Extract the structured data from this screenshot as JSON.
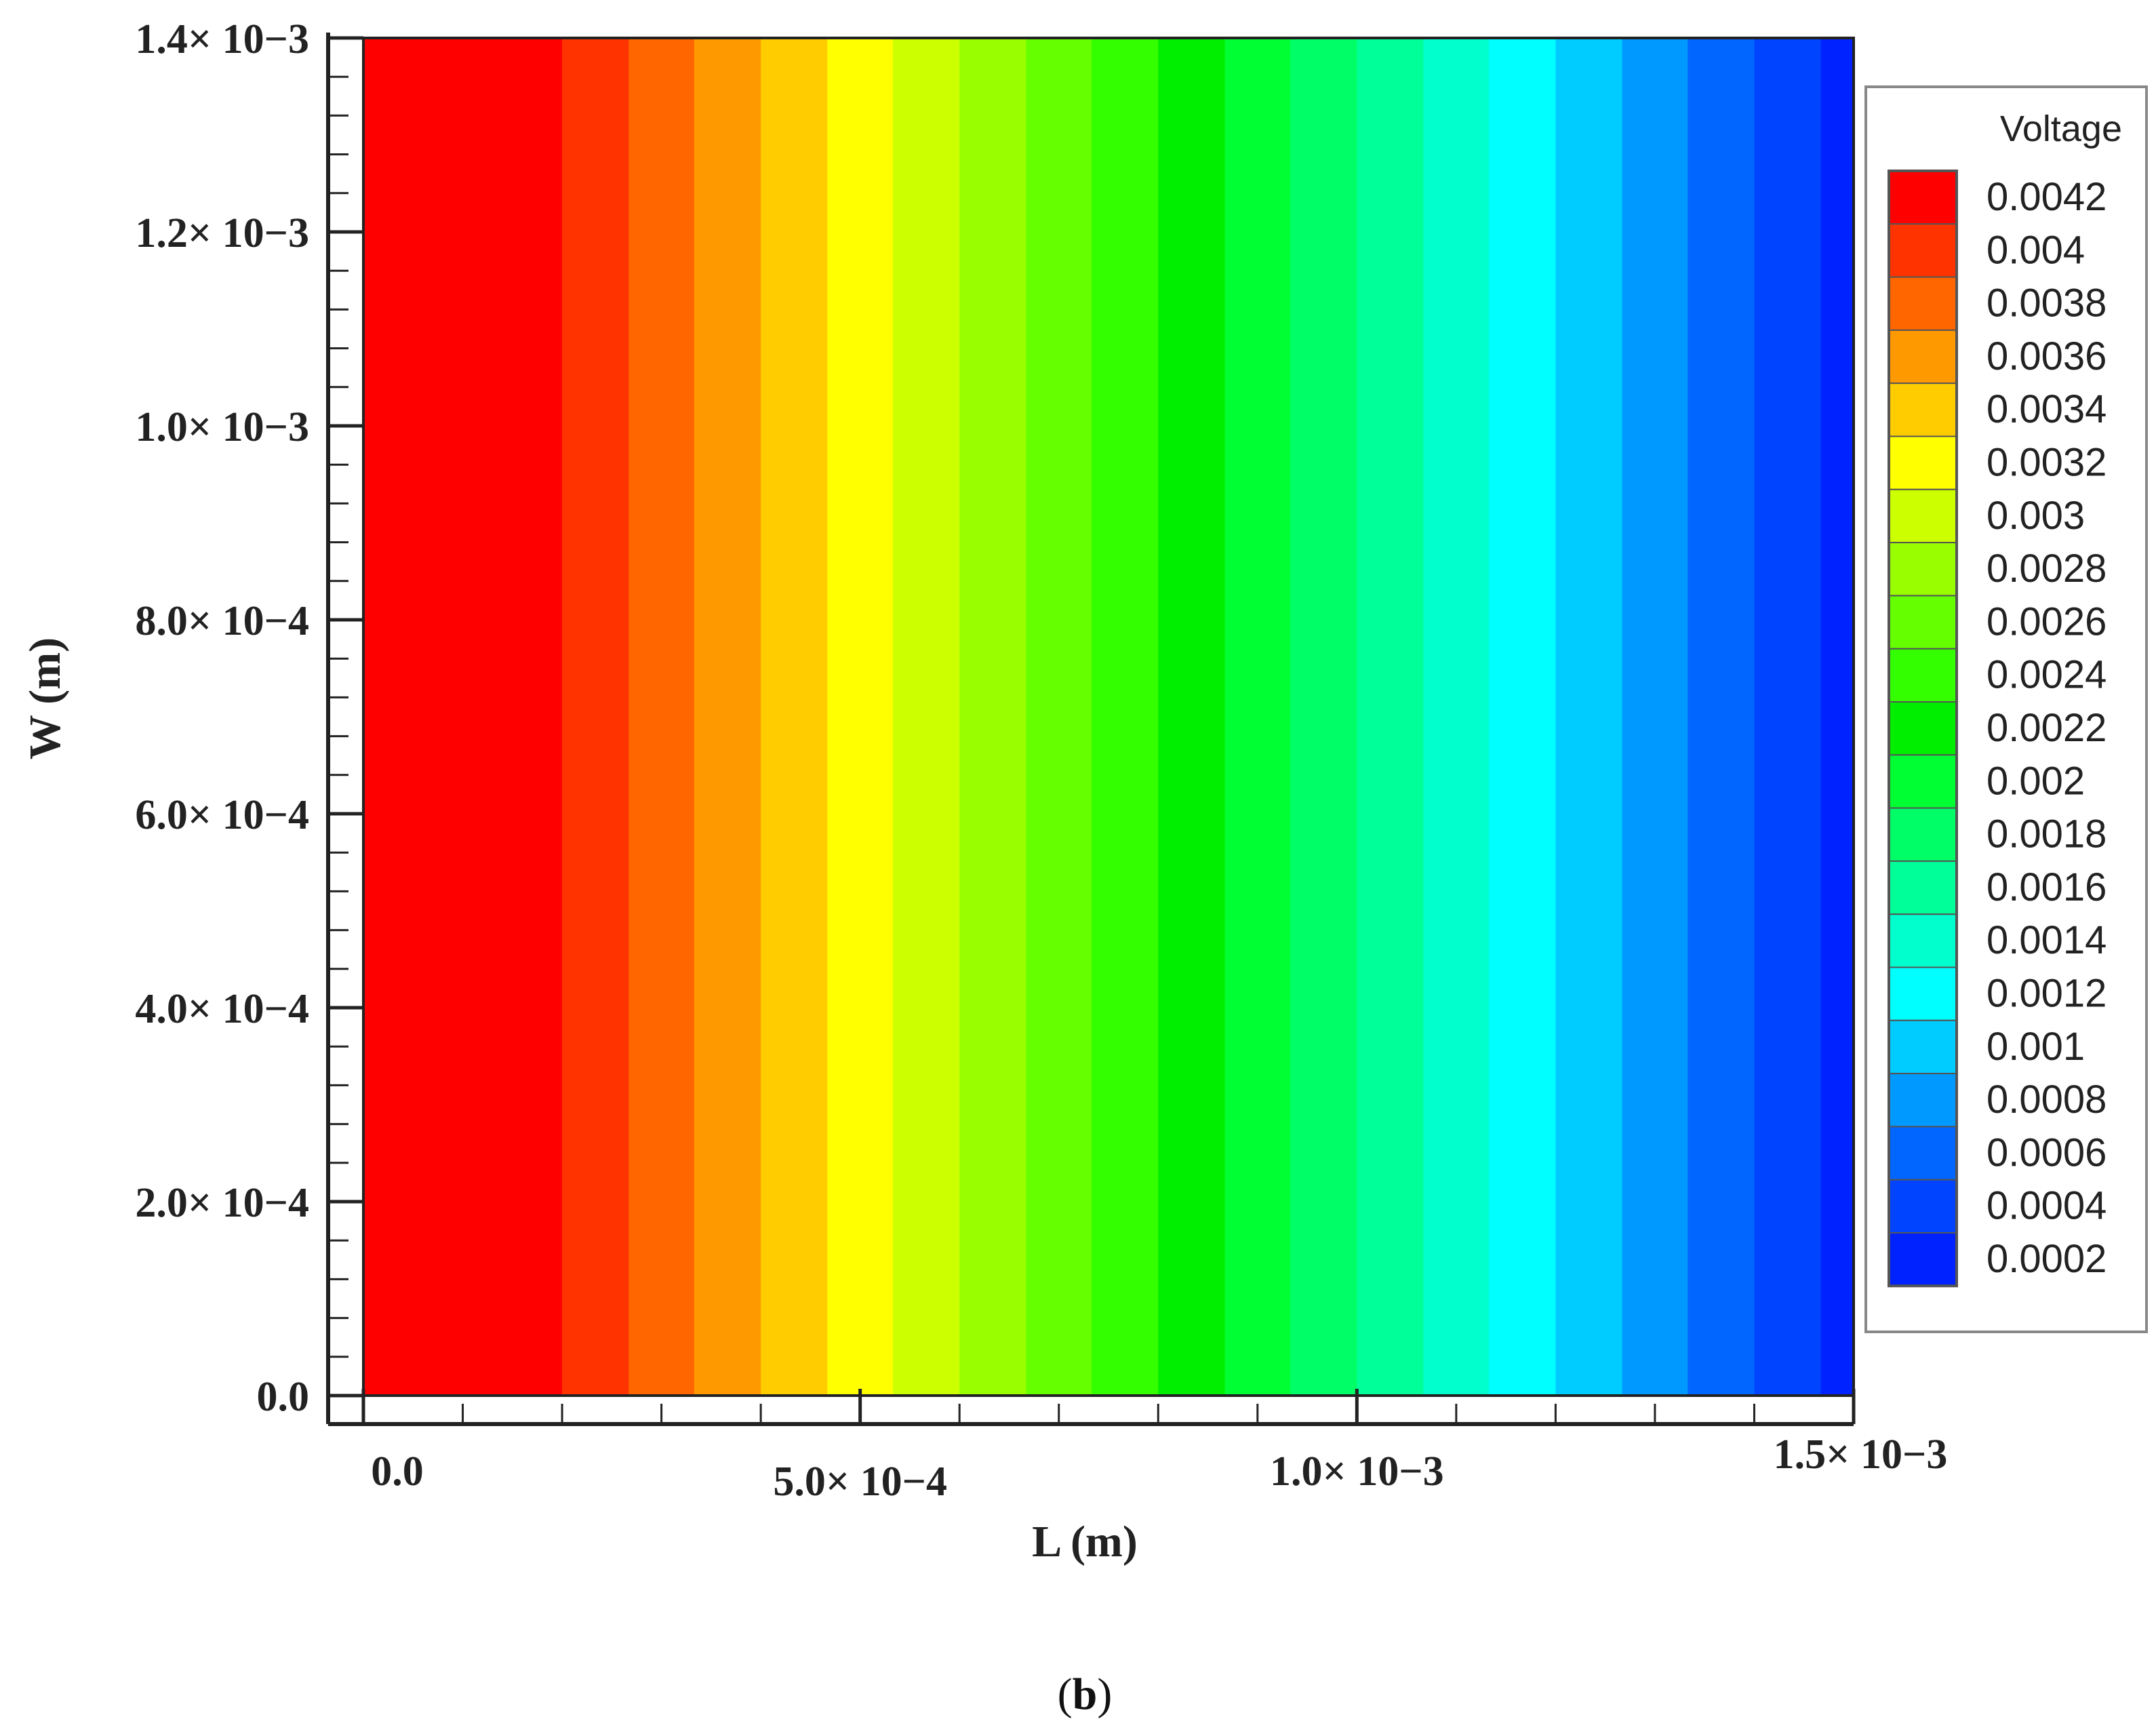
{
  "caption": {
    "open": "(",
    "letter": "b",
    "close": ")"
  },
  "chart_data": {
    "type": "heatmap",
    "xlabel": "L (m)",
    "ylabel": "W (m)",
    "xlim": [
      0,
      0.0015
    ],
    "ylim": [
      0,
      0.0014
    ],
    "x_ticks": [
      {
        "value": 0,
        "label": "0.0"
      },
      {
        "value": 0.0005,
        "label": "5.0× 10−4"
      },
      {
        "value": 0.001,
        "label": "1.0× 10−3"
      },
      {
        "value": 0.0015,
        "label": "1.5× 10−3"
      }
    ],
    "y_ticks": [
      {
        "value": 0,
        "label": "0.0"
      },
      {
        "value": 0.0002,
        "label": "2.0× 10−4"
      },
      {
        "value": 0.0004,
        "label": "4.0× 10−4"
      },
      {
        "value": 0.0006,
        "label": "6.0× 10−4"
      },
      {
        "value": 0.0008,
        "label": "8.0× 10−4"
      },
      {
        "value": 0.001,
        "label": "1.0× 10−3"
      },
      {
        "value": 0.0012,
        "label": "1.2× 10−3"
      },
      {
        "value": 0.0014,
        "label": "1.4× 10−3"
      }
    ],
    "colorbar": {
      "title": "Voltage",
      "levels": [
        {
          "label": "0.0042",
          "value": 0.0042,
          "color": "#ff0000"
        },
        {
          "label": "0.004",
          "value": 0.004,
          "color": "#ff3300"
        },
        {
          "label": "0.0038",
          "value": 0.0038,
          "color": "#ff6600"
        },
        {
          "label": "0.0036",
          "value": 0.0036,
          "color": "#ff9900"
        },
        {
          "label": "0.0034",
          "value": 0.0034,
          "color": "#ffcc00"
        },
        {
          "label": "0.0032",
          "value": 0.0032,
          "color": "#ffff00"
        },
        {
          "label": "0.003",
          "value": 0.003,
          "color": "#ccff00"
        },
        {
          "label": "0.0028",
          "value": 0.0028,
          "color": "#99ff00"
        },
        {
          "label": "0.0026",
          "value": 0.0026,
          "color": "#66ff00"
        },
        {
          "label": "0.0024",
          "value": 0.0024,
          "color": "#33ff00"
        },
        {
          "label": "0.0022",
          "value": 0.0022,
          "color": "#00ee00"
        },
        {
          "label": "0.002",
          "value": 0.002,
          "color": "#00ff33"
        },
        {
          "label": "0.0018",
          "value": 0.0018,
          "color": "#00ff66"
        },
        {
          "label": "0.0016",
          "value": 0.0016,
          "color": "#00ff99"
        },
        {
          "label": "0.0014",
          "value": 0.0014,
          "color": "#00ffcc"
        },
        {
          "label": "0.0012",
          "value": 0.0012,
          "color": "#00ffff"
        },
        {
          "label": "0.001",
          "value": 0.001,
          "color": "#00ccff"
        },
        {
          "label": "0.0008",
          "value": 0.0008,
          "color": "#0099ff"
        },
        {
          "label": "0.0006",
          "value": 0.0006,
          "color": "#0066ff"
        },
        {
          "label": "0.0004",
          "value": 0.0004,
          "color": "#0044ff"
        },
        {
          "label": "0.0002",
          "value": 0.0002,
          "color": "#0022ff"
        }
      ]
    },
    "bands": [
      {
        "x_start": 0,
        "x_end": 0.0002,
        "color": "#ff0000"
      },
      {
        "x_start": 0.0002,
        "x_end": 0.000267,
        "color": "#ff3300"
      },
      {
        "x_start": 0.000267,
        "x_end": 0.000333,
        "color": "#ff6600"
      },
      {
        "x_start": 0.000333,
        "x_end": 0.0004,
        "color": "#ff9900"
      },
      {
        "x_start": 0.0004,
        "x_end": 0.000467,
        "color": "#ffcc00"
      },
      {
        "x_start": 0.000467,
        "x_end": 0.000533,
        "color": "#ffff00"
      },
      {
        "x_start": 0.000533,
        "x_end": 0.0006,
        "color": "#ccff00"
      },
      {
        "x_start": 0.0006,
        "x_end": 0.000667,
        "color": "#99ff00"
      },
      {
        "x_start": 0.000667,
        "x_end": 0.000733,
        "color": "#66ff00"
      },
      {
        "x_start": 0.000733,
        "x_end": 0.0008,
        "color": "#33ff00"
      },
      {
        "x_start": 0.0008,
        "x_end": 0.000867,
        "color": "#00ee00"
      },
      {
        "x_start": 0.000867,
        "x_end": 0.000933,
        "color": "#00ff33"
      },
      {
        "x_start": 0.000933,
        "x_end": 0.001,
        "color": "#00ff66"
      },
      {
        "x_start": 0.001,
        "x_end": 0.001067,
        "color": "#00ff99"
      },
      {
        "x_start": 0.001067,
        "x_end": 0.001133,
        "color": "#00ffcc"
      },
      {
        "x_start": 0.001133,
        "x_end": 0.0012,
        "color": "#00ffff"
      },
      {
        "x_start": 0.0012,
        "x_end": 0.001267,
        "color": "#00ccff"
      },
      {
        "x_start": 0.001267,
        "x_end": 0.001333,
        "color": "#0099ff"
      },
      {
        "x_start": 0.001333,
        "x_end": 0.0014,
        "color": "#0066ff"
      },
      {
        "x_start": 0.0014,
        "x_end": 0.001467,
        "color": "#0044ff"
      },
      {
        "x_start": 0.001467,
        "x_end": 0.0015,
        "color": "#0022ff"
      }
    ]
  }
}
